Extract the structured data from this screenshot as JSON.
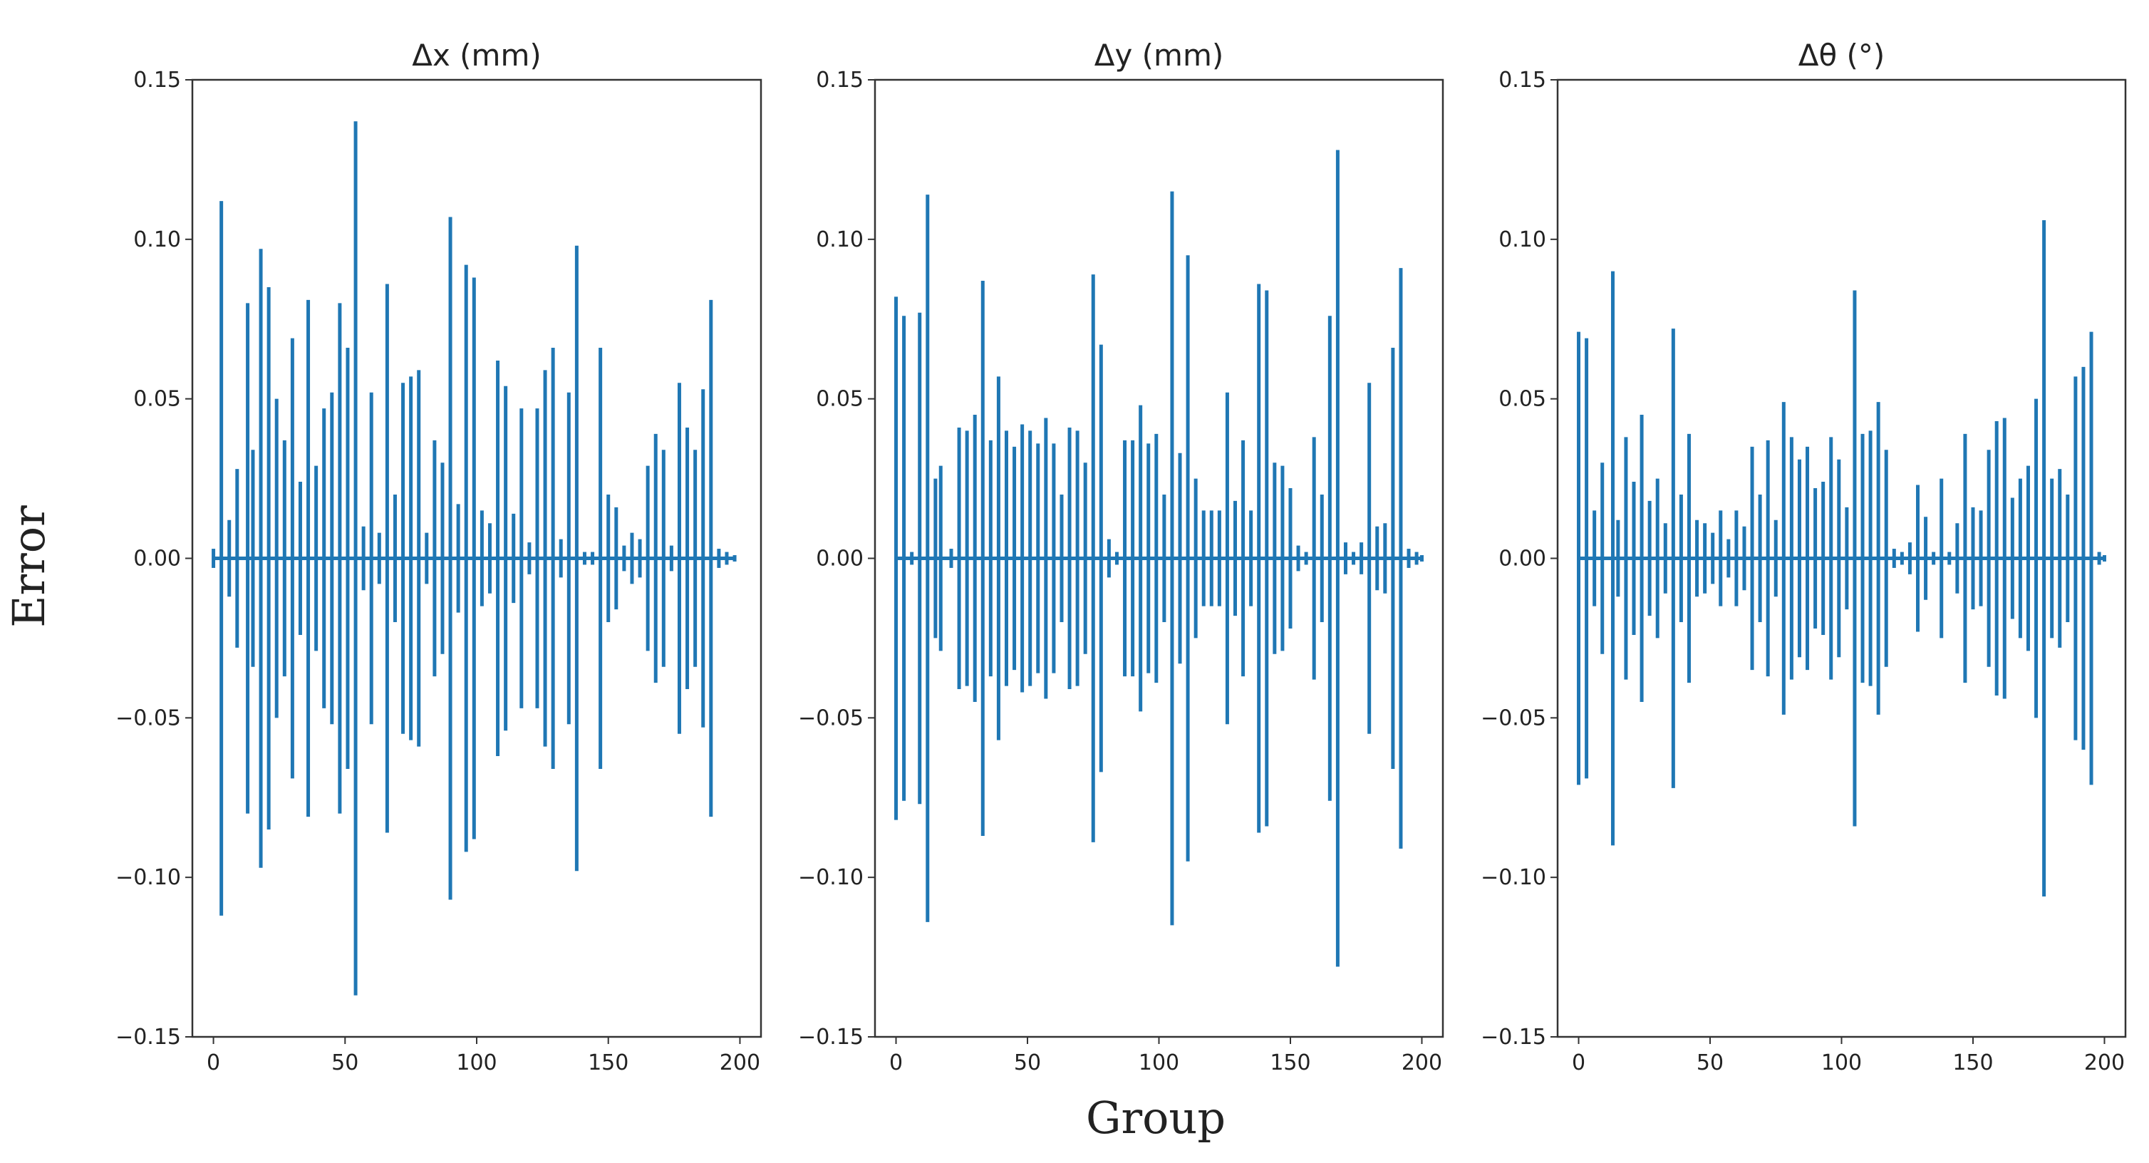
{
  "colors": {
    "series": "#1f77b4",
    "axes": "#333333",
    "text": "#222222"
  },
  "shared": {
    "xlabel": "Group",
    "ylabel": "Error",
    "ylim": [
      -0.15,
      0.15
    ],
    "xlim": [
      -8,
      208
    ],
    "yticks": [
      0.15,
      0.1,
      0.05,
      0.0,
      -0.05,
      -0.1,
      -0.15
    ],
    "ytick_labels": [
      "0.15",
      "0.10",
      "0.05",
      "0.00",
      "−0.05",
      "−0.10",
      "−0.15"
    ],
    "xticks": [
      0,
      50,
      100,
      150,
      200
    ],
    "xtick_labels": [
      "0",
      "50",
      "100",
      "150",
      "200"
    ]
  },
  "chart_data": [
    {
      "type": "stem",
      "title": "Δx (mm)",
      "xlabel": "Group",
      "ylabel": "Error",
      "ylim": [
        -0.15,
        0.15
      ],
      "x": [
        0,
        3,
        6,
        9,
        13,
        15,
        18,
        21,
        24,
        27,
        30,
        33,
        36,
        39,
        42,
        45,
        48,
        51,
        54,
        57,
        60,
        63,
        66,
        69,
        72,
        75,
        78,
        81,
        84,
        87,
        90,
        93,
        96,
        99,
        102,
        105,
        108,
        111,
        114,
        117,
        120,
        123,
        126,
        129,
        132,
        135,
        138,
        141,
        144,
        147,
        150,
        153,
        156,
        159,
        162,
        165,
        168,
        171,
        174,
        177,
        180,
        183,
        186,
        189,
        192,
        195,
        198
      ],
      "values": [
        0.003,
        0.112,
        0.012,
        0.028,
        0.08,
        0.034,
        0.097,
        0.085,
        0.05,
        0.037,
        0.069,
        0.024,
        0.081,
        0.029,
        0.047,
        0.052,
        0.08,
        0.066,
        0.137,
        0.01,
        0.052,
        0.008,
        0.086,
        0.02,
        0.055,
        0.057,
        0.059,
        0.008,
        0.037,
        0.03,
        0.107,
        0.017,
        0.092,
        0.088,
        0.015,
        0.011,
        0.062,
        0.054,
        0.014,
        0.047,
        0.005,
        0.047,
        0.059,
        0.066,
        0.006,
        0.052,
        0.098,
        0.002,
        0.002,
        0.066,
        0.02,
        0.016,
        0.004,
        0.008,
        0.006,
        0.029,
        0.039,
        0.034,
        0.004,
        0.055,
        0.041,
        0.034,
        0.053,
        0.081,
        0.003,
        0.002,
        0.001
      ]
    },
    {
      "type": "stem",
      "title": "Δy (mm)",
      "xlabel": "Group",
      "ylabel": "Error",
      "ylim": [
        -0.15,
        0.15
      ],
      "x": [
        0,
        3,
        6,
        9,
        12,
        15,
        17,
        21,
        24,
        27,
        30,
        33,
        36,
        39,
        42,
        45,
        48,
        51,
        54,
        57,
        60,
        63,
        66,
        69,
        72,
        75,
        78,
        81,
        84,
        87,
        90,
        93,
        96,
        99,
        102,
        105,
        108,
        111,
        114,
        117,
        120,
        123,
        126,
        129,
        132,
        135,
        138,
        141,
        144,
        147,
        150,
        153,
        156,
        159,
        162,
        165,
        168,
        171,
        174,
        177,
        180,
        183,
        186,
        189,
        192,
        195,
        198,
        200
      ],
      "values": [
        0.082,
        0.076,
        0.002,
        0.077,
        0.114,
        0.025,
        0.029,
        0.003,
        0.041,
        0.04,
        0.045,
        0.087,
        0.037,
        0.057,
        0.04,
        0.035,
        0.042,
        0.04,
        0.036,
        0.044,
        0.036,
        0.02,
        0.041,
        0.04,
        0.03,
        0.089,
        0.067,
        0.006,
        0.002,
        0.037,
        0.037,
        0.048,
        0.036,
        0.039,
        0.02,
        0.115,
        0.033,
        0.095,
        0.025,
        0.015,
        0.015,
        0.015,
        0.052,
        0.018,
        0.037,
        0.015,
        0.086,
        0.084,
        0.03,
        0.029,
        0.022,
        0.004,
        0.002,
        0.038,
        0.02,
        0.076,
        0.128,
        0.005,
        0.002,
        0.005,
        0.055,
        0.01,
        0.011,
        0.066,
        0.091,
        0.003,
        0.002,
        0.001
      ]
    },
    {
      "type": "stem",
      "title": "Δθ (°)",
      "xlabel": "Group",
      "ylabel": "Error",
      "ylim": [
        -0.15,
        0.15
      ],
      "x": [
        0,
        3,
        6,
        9,
        13,
        15,
        18,
        21,
        24,
        27,
        30,
        33,
        36,
        39,
        42,
        45,
        48,
        51,
        54,
        57,
        60,
        63,
        66,
        69,
        72,
        75,
        78,
        81,
        84,
        87,
        90,
        93,
        96,
        99,
        102,
        105,
        108,
        111,
        114,
        117,
        120,
        123,
        126,
        129,
        132,
        135,
        138,
        141,
        144,
        147,
        150,
        153,
        156,
        159,
        162,
        165,
        168,
        171,
        174,
        177,
        180,
        183,
        186,
        189,
        192,
        195,
        198,
        200
      ],
      "values": [
        0.071,
        0.069,
        0.015,
        0.03,
        0.09,
        0.012,
        0.038,
        0.024,
        0.045,
        0.018,
        0.025,
        0.011,
        0.072,
        0.02,
        0.039,
        0.012,
        0.011,
        0.008,
        0.015,
        0.006,
        0.015,
        0.01,
        0.035,
        0.02,
        0.037,
        0.012,
        0.049,
        0.038,
        0.031,
        0.035,
        0.022,
        0.024,
        0.038,
        0.031,
        0.016,
        0.084,
        0.039,
        0.04,
        0.049,
        0.034,
        0.003,
        0.002,
        0.005,
        0.023,
        0.013,
        0.002,
        0.025,
        0.002,
        0.011,
        0.039,
        0.016,
        0.015,
        0.034,
        0.043,
        0.044,
        0.019,
        0.025,
        0.029,
        0.05,
        0.106,
        0.025,
        0.028,
        0.02,
        0.057,
        0.06,
        0.071,
        0.002,
        0.001
      ]
    }
  ]
}
